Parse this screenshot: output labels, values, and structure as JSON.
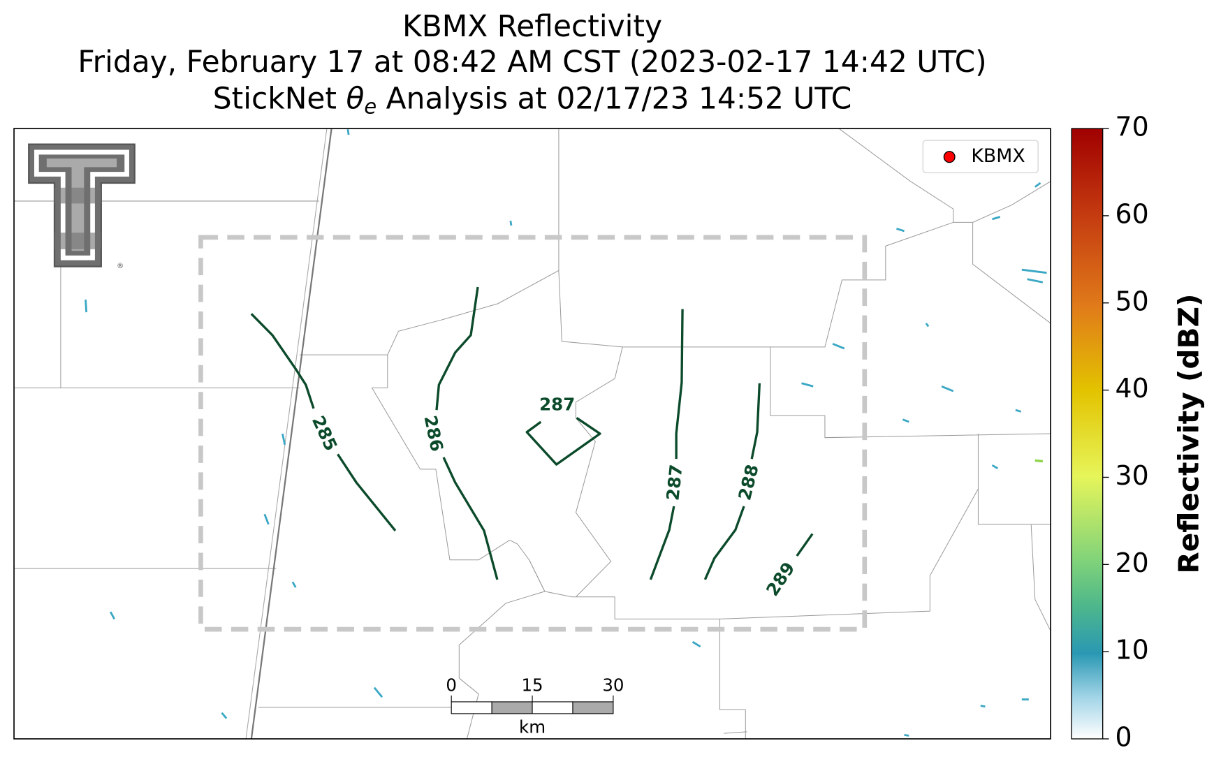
{
  "title": {
    "line1": "KBMX Reflectivity",
    "line2": "Friday, February 17 at 08:42 AM CST (2023-02-17 14:42 UTC)",
    "line3": {
      "prefix": "StickNet ",
      "symbol": "θ",
      "subscript": "e",
      "suffix": " Analysis at 02/17/23 14:52 UTC"
    }
  },
  "legend": {
    "label": "KBMX",
    "color": "#ff0000"
  },
  "logo": {
    "mark": "®"
  },
  "contours": [
    {
      "level": 285
    },
    {
      "level": 286
    },
    {
      "level": 287
    },
    {
      "level": 287
    },
    {
      "level": 288
    },
    {
      "level": 289
    }
  ],
  "scale_bar": {
    "lim": [
      0,
      30
    ],
    "ticks": [
      0,
      15,
      30
    ],
    "unit": "km"
  },
  "colorbar": {
    "label": "Reflectivity (dBZ)",
    "lim": [
      0,
      70
    ],
    "ticks": [
      0,
      10,
      20,
      30,
      40,
      50,
      60,
      70
    ]
  }
}
